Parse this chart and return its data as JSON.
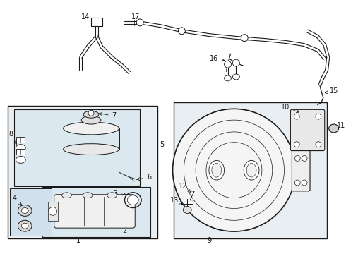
{
  "background_color": "#ffffff",
  "line_color": "#1a1a1a",
  "box_fill": "#e8f0f5",
  "box_fill2": "#dde8f0",
  "figsize": [
    4.9,
    3.6
  ],
  "dpi": 100
}
